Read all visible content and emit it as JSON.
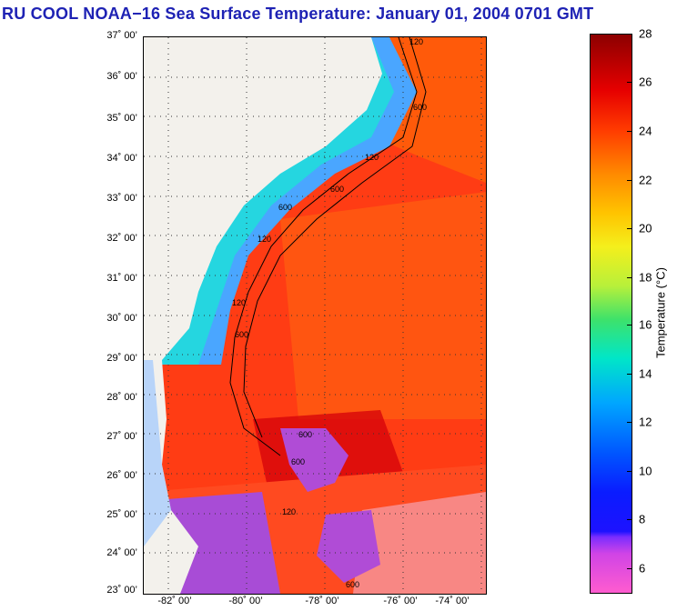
{
  "title": "RU COOL  NOAA−16  Sea Surface Temperature:  January 01, 2004 0701 GMT",
  "map": {
    "lat_labels": [
      "37˚ 00’",
      "36˚ 00’",
      "35˚ 00’",
      "34˚ 00’",
      "33˚ 00’",
      "32˚ 00’",
      "31˚ 00’",
      "30˚ 00’",
      "29˚ 00’",
      "28˚ 00’",
      "27˚ 00’",
      "26˚ 00’",
      "25˚ 00’",
      "24˚ 00’",
      "23˚ 00’"
    ],
    "lon_labels": [
      "-82˚ 00’",
      "-80˚ 00’",
      "-78˚ 00’",
      "-76˚ 00’",
      "-74˚ 00’"
    ],
    "isobath_labels": [
      "120",
      "600",
      "120",
      "600",
      "120",
      "600",
      "120",
      "600",
      "600",
      "600",
      "120",
      "600"
    ]
  },
  "colorbar": {
    "label": "Temperature (°C)",
    "ticks": [
      "28",
      "26",
      "24",
      "22",
      "20",
      "18",
      "16",
      "14",
      "12",
      "10",
      "8",
      "6"
    ]
  }
}
